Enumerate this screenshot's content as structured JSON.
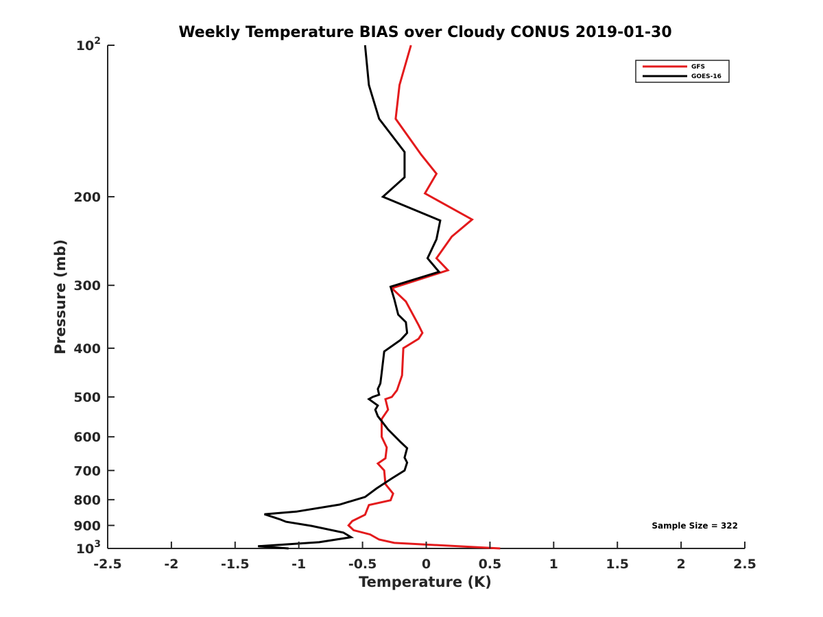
{
  "chart_data": {
    "type": "line",
    "title": "Weekly Temperature BIAS over Cloudy CONUS 2019-01-30",
    "xlabel": "Temperature (K)",
    "ylabel": "Pressure (mb)",
    "xlim": [
      -2.5,
      2.5
    ],
    "ylim": [
      100,
      1000
    ],
    "yscale": "log",
    "y_reversed": true,
    "grid": false,
    "legend_position": "top-right",
    "annotation": "Sample Size = 322",
    "x_ticks": [
      {
        "value": -2.5,
        "label": "-2.5"
      },
      {
        "value": -2,
        "label": "-2"
      },
      {
        "value": -1.5,
        "label": "-1.5"
      },
      {
        "value": -1,
        "label": "-1"
      },
      {
        "value": -0.5,
        "label": "-0.5"
      },
      {
        "value": 0,
        "label": "0"
      },
      {
        "value": 0.5,
        "label": "0.5"
      },
      {
        "value": 1,
        "label": "1"
      },
      {
        "value": 1.5,
        "label": "1.5"
      },
      {
        "value": 2,
        "label": "2"
      },
      {
        "value": 2.5,
        "label": "2.5"
      }
    ],
    "y_ticks": [
      {
        "value": 100,
        "label": "10",
        "sup": "2"
      },
      {
        "value": 200,
        "label": "200",
        "sup": ""
      },
      {
        "value": 300,
        "label": "300",
        "sup": ""
      },
      {
        "value": 400,
        "label": "400",
        "sup": ""
      },
      {
        "value": 500,
        "label": "500",
        "sup": ""
      },
      {
        "value": 600,
        "label": "600",
        "sup": ""
      },
      {
        "value": 700,
        "label": "700",
        "sup": ""
      },
      {
        "value": 800,
        "label": "800",
        "sup": ""
      },
      {
        "value": 900,
        "label": "900",
        "sup": ""
      },
      {
        "value": 1000,
        "label": "10",
        "sup": "3"
      }
    ],
    "series": [
      {
        "name": "GFS",
        "color": "#e31a1c",
        "points": [
          {
            "x": -0.12,
            "y": 100
          },
          {
            "x": -0.21,
            "y": 120
          },
          {
            "x": -0.24,
            "y": 140
          },
          {
            "x": -0.04,
            "y": 165
          },
          {
            "x": 0.08,
            "y": 180
          },
          {
            "x": -0.01,
            "y": 197
          },
          {
            "x": 0.36,
            "y": 222
          },
          {
            "x": 0.2,
            "y": 240
          },
          {
            "x": 0.08,
            "y": 265
          },
          {
            "x": 0.17,
            "y": 280
          },
          {
            "x": -0.27,
            "y": 304
          },
          {
            "x": -0.16,
            "y": 323
          },
          {
            "x": -0.06,
            "y": 360
          },
          {
            "x": -0.03,
            "y": 373
          },
          {
            "x": -0.06,
            "y": 383
          },
          {
            "x": -0.18,
            "y": 400
          },
          {
            "x": -0.19,
            "y": 453
          },
          {
            "x": -0.23,
            "y": 485
          },
          {
            "x": -0.27,
            "y": 500
          },
          {
            "x": -0.32,
            "y": 505
          },
          {
            "x": -0.3,
            "y": 530
          },
          {
            "x": -0.35,
            "y": 553
          },
          {
            "x": -0.35,
            "y": 600
          },
          {
            "x": -0.31,
            "y": 630
          },
          {
            "x": -0.32,
            "y": 662
          },
          {
            "x": -0.38,
            "y": 678
          },
          {
            "x": -0.33,
            "y": 700
          },
          {
            "x": -0.32,
            "y": 745
          },
          {
            "x": -0.26,
            "y": 778
          },
          {
            "x": -0.28,
            "y": 802
          },
          {
            "x": -0.45,
            "y": 820
          },
          {
            "x": -0.48,
            "y": 857
          },
          {
            "x": -0.58,
            "y": 882
          },
          {
            "x": -0.61,
            "y": 900
          },
          {
            "x": -0.57,
            "y": 920
          },
          {
            "x": -0.44,
            "y": 938
          },
          {
            "x": -0.37,
            "y": 960
          },
          {
            "x": -0.25,
            "y": 975
          },
          {
            "x": 0.58,
            "y": 1000
          }
        ]
      },
      {
        "name": "GOES-16",
        "color": "#000000",
        "points": [
          {
            "x": -0.48,
            "y": 100
          },
          {
            "x": -0.45,
            "y": 120
          },
          {
            "x": -0.37,
            "y": 140
          },
          {
            "x": -0.17,
            "y": 163
          },
          {
            "x": -0.17,
            "y": 183
          },
          {
            "x": -0.34,
            "y": 200
          },
          {
            "x": 0.11,
            "y": 223
          },
          {
            "x": 0.08,
            "y": 243
          },
          {
            "x": 0.01,
            "y": 265
          },
          {
            "x": 0.1,
            "y": 282
          },
          {
            "x": -0.28,
            "y": 302
          },
          {
            "x": -0.25,
            "y": 320
          },
          {
            "x": -0.22,
            "y": 343
          },
          {
            "x": -0.16,
            "y": 355
          },
          {
            "x": -0.15,
            "y": 373
          },
          {
            "x": -0.2,
            "y": 385
          },
          {
            "x": -0.33,
            "y": 406
          },
          {
            "x": -0.35,
            "y": 448
          },
          {
            "x": -0.36,
            "y": 470
          },
          {
            "x": -0.38,
            "y": 482
          },
          {
            "x": -0.37,
            "y": 495
          },
          {
            "x": -0.42,
            "y": 500
          },
          {
            "x": -0.45,
            "y": 505
          },
          {
            "x": -0.38,
            "y": 520
          },
          {
            "x": -0.4,
            "y": 530
          },
          {
            "x": -0.38,
            "y": 546
          },
          {
            "x": -0.3,
            "y": 580
          },
          {
            "x": -0.2,
            "y": 615
          },
          {
            "x": -0.15,
            "y": 632
          },
          {
            "x": -0.17,
            "y": 660
          },
          {
            "x": -0.15,
            "y": 675
          },
          {
            "x": -0.17,
            "y": 700
          },
          {
            "x": -0.27,
            "y": 726
          },
          {
            "x": -0.39,
            "y": 760
          },
          {
            "x": -0.48,
            "y": 790
          },
          {
            "x": -0.68,
            "y": 818
          },
          {
            "x": -1.02,
            "y": 845
          },
          {
            "x": -1.27,
            "y": 855
          },
          {
            "x": -1.15,
            "y": 875
          },
          {
            "x": -1.1,
            "y": 885
          },
          {
            "x": -0.9,
            "y": 902
          },
          {
            "x": -0.65,
            "y": 930
          },
          {
            "x": -0.59,
            "y": 950
          },
          {
            "x": -0.84,
            "y": 972
          },
          {
            "x": -1.32,
            "y": 990
          },
          {
            "x": -1.08,
            "y": 1000
          }
        ]
      }
    ]
  }
}
